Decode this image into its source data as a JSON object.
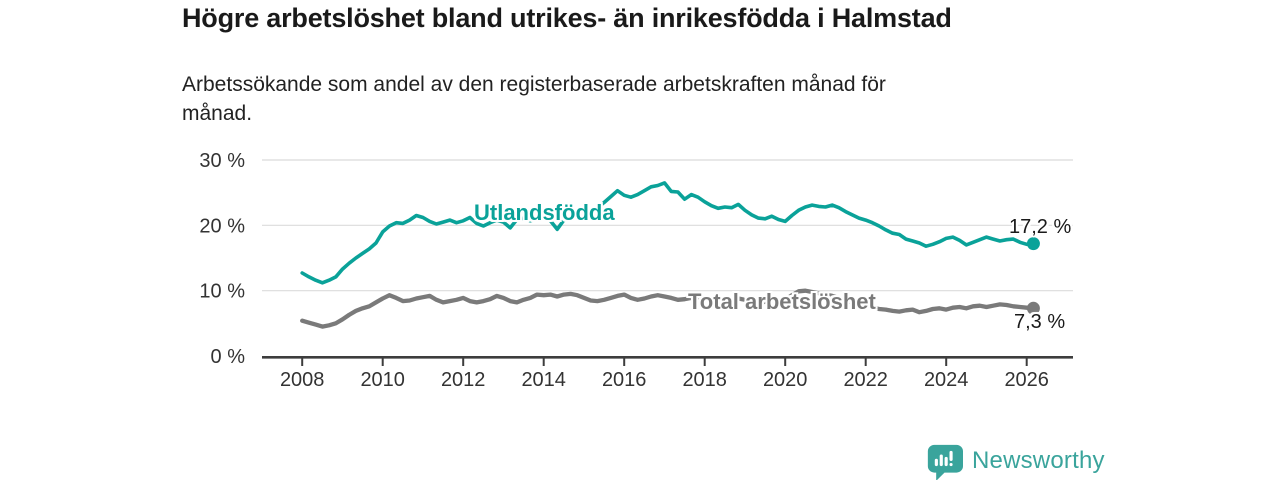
{
  "header": {
    "title": "Högre arbetslöshet bland utrikes- än inrikesfödda i Halmstad",
    "subtitle_lines": [
      "Arbetssökande som andel av den registerbaserade arbetskraften månad för",
      "månad."
    ]
  },
  "chart_data": {
    "type": "line",
    "title": "Högre arbetslöshet bland utrikes- än inrikesfödda i Halmstad",
    "subtitle": "Arbetssökande som andel av den registerbaserade arbetskraften månad för månad.",
    "xlabel": "",
    "ylabel": "",
    "y_unit": "%",
    "grid": true,
    "legend_position": "inline-labels",
    "x_domain": [
      2007.0,
      2027.15
    ],
    "y_domain": [
      0,
      30
    ],
    "y_ticks": [
      0,
      10,
      20,
      30
    ],
    "y_tick_labels": [
      "0 %",
      "10 %",
      "20 %",
      "30 %"
    ],
    "x_ticks": [
      2008,
      2010,
      2012,
      2014,
      2016,
      2018,
      2020,
      2022,
      2024,
      2026
    ],
    "colors": {
      "grid": "#dbdbdb",
      "axis": "#3d3d3d",
      "axis_text": "#333333",
      "accent_teal": "#0aa299",
      "accent_gray": "#7a7a7a"
    },
    "series": [
      {
        "id": "utlandsfodda",
        "name": "Utlandsfödda",
        "color": "#0aa299",
        "stroke_width": 3.6,
        "end_label": "17,2 %",
        "end_value": 17.2,
        "x_start": 2008.0,
        "x_step": 0.166667,
        "values": [
          12.7,
          12.1,
          11.6,
          11.2,
          11.6,
          12.1,
          13.3,
          14.2,
          15.0,
          15.7,
          16.4,
          17.3,
          19.0,
          19.9,
          20.4,
          20.3,
          20.8,
          21.5,
          21.2,
          20.6,
          20.2,
          20.5,
          20.8,
          20.4,
          20.7,
          21.2,
          20.3,
          19.9,
          20.4,
          20.8,
          20.5,
          19.6,
          20.9,
          21.1,
          20.7,
          21.0,
          21.2,
          20.7,
          19.4,
          20.8,
          21.0,
          21.2,
          21.6,
          22.1,
          22.7,
          23.5,
          24.4,
          25.3,
          24.6,
          24.3,
          24.7,
          25.3,
          25.9,
          26.1,
          26.5,
          25.2,
          25.1,
          24.0,
          24.7,
          24.3,
          23.6,
          23.0,
          22.6,
          22.8,
          22.7,
          23.2,
          22.3,
          21.6,
          21.1,
          21.0,
          21.4,
          20.9,
          20.6,
          21.5,
          22.3,
          22.8,
          23.1,
          22.9,
          22.8,
          23.1,
          22.7,
          22.1,
          21.6,
          21.1,
          20.8,
          20.4,
          19.9,
          19.3,
          18.8,
          18.6,
          17.9,
          17.6,
          17.3,
          16.8,
          17.1,
          17.5,
          18.0,
          18.2,
          17.7,
          17.0,
          17.4,
          17.8,
          18.2,
          17.9,
          17.6,
          17.8,
          17.9,
          17.4,
          17.1,
          17.2
        ]
      },
      {
        "id": "total",
        "name": "Total arbetslöshet",
        "color": "#7a7a7a",
        "stroke_width": 4.3,
        "end_label": "7,3 %",
        "end_value": 7.3,
        "x_start": 2008.0,
        "x_step": 0.166667,
        "values": [
          5.4,
          5.1,
          4.8,
          4.5,
          4.7,
          5.0,
          5.6,
          6.3,
          6.9,
          7.3,
          7.6,
          8.2,
          8.8,
          9.3,
          8.9,
          8.4,
          8.5,
          8.8,
          9.0,
          9.2,
          8.6,
          8.2,
          8.4,
          8.6,
          8.9,
          8.4,
          8.2,
          8.4,
          8.7,
          9.2,
          8.9,
          8.4,
          8.2,
          8.6,
          8.9,
          9.4,
          9.3,
          9.4,
          9.1,
          9.4,
          9.5,
          9.3,
          8.9,
          8.5,
          8.4,
          8.6,
          8.9,
          9.2,
          9.4,
          8.9,
          8.6,
          8.8,
          9.1,
          9.3,
          9.1,
          8.9,
          8.6,
          8.7,
          8.9,
          9.0,
          8.8,
          8.5,
          8.3,
          8.4,
          8.6,
          8.8,
          8.6,
          8.4,
          8.2,
          8.3,
          8.5,
          8.4,
          8.6,
          9.3,
          9.9,
          10.0,
          9.8,
          9.6,
          9.4,
          9.2,
          8.9,
          8.5,
          8.2,
          7.9,
          7.7,
          7.4,
          7.2,
          7.1,
          6.9,
          6.8,
          7.0,
          7.1,
          6.7,
          6.9,
          7.2,
          7.3,
          7.1,
          7.4,
          7.5,
          7.3,
          7.6,
          7.7,
          7.5,
          7.7,
          7.9,
          7.8,
          7.6,
          7.5,
          7.4,
          7.3
        ]
      }
    ]
  },
  "footer": {
    "brand": "Newsworthy",
    "brand_color": "#3aa49c"
  }
}
